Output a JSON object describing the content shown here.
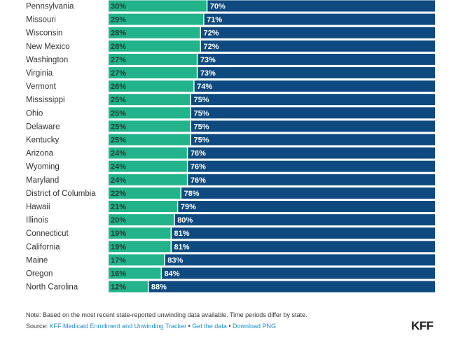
{
  "chart_data": {
    "type": "bar",
    "stacked": true,
    "orientation": "horizontal",
    "categories": [
      "Pennsylvania",
      "Missouri",
      "Wisconsin",
      "New Mexico",
      "Washington",
      "Virginia",
      "Vermont",
      "Mississippi",
      "Ohio",
      "Delaware",
      "Kentucky",
      "Arizona",
      "Wyoming",
      "Maryland",
      "District of Columbia",
      "Hawaii",
      "Illinois",
      "Connecticut",
      "California",
      "Maine",
      "Oregon",
      "North Carolina"
    ],
    "series": [
      {
        "color": "#22b38b",
        "values": [
          30,
          29,
          28,
          28,
          27,
          27,
          26,
          25,
          25,
          25,
          25,
          24,
          24,
          24,
          22,
          21,
          20,
          19,
          19,
          17,
          16,
          12
        ]
      },
      {
        "color": "#0e4a7f",
        "values": [
          70,
          71,
          72,
          72,
          73,
          73,
          74,
          75,
          75,
          75,
          75,
          76,
          76,
          76,
          78,
          79,
          80,
          81,
          81,
          83,
          84,
          88
        ]
      }
    ],
    "value_suffix": "%",
    "xlim": [
      0,
      100
    ]
  },
  "colors": {
    "series_1": "#22b38b",
    "series_2": "#0e4a7f",
    "label_dark": "#1e3c32",
    "label_light": "#ffffff"
  },
  "footer": {
    "note": "Note: Based on the most recent state-reported unwinding data available. Time periods differ by state.",
    "source_prefix": "Source: ",
    "source_link": "KFF Medicaid Enrollment and Unwinding Tracker",
    "sep1": " • ",
    "get_data": "Get the data",
    "sep2": " • ",
    "download": "Download PNG"
  },
  "logo": "KFF"
}
